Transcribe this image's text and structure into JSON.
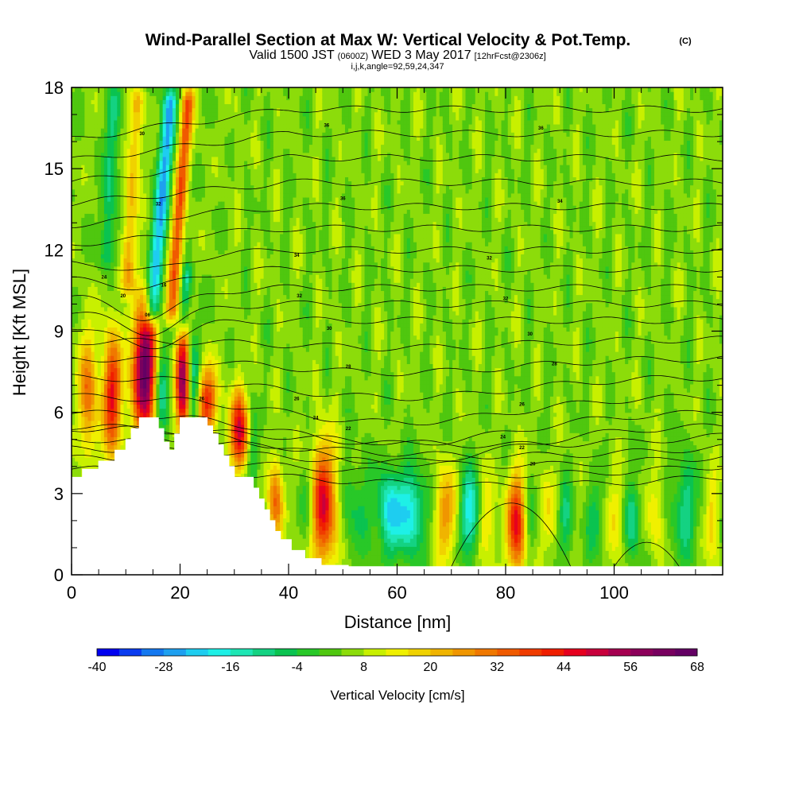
{
  "title": {
    "main": "Wind-Parallel Section at Max W: Vertical Velocity & Pot.Temp.",
    "copyright": "(C)",
    "valid_prefix": "Valid 1500 JST",
    "valid_utc": "(0600Z)",
    "valid_date": "WED 3 May 2017",
    "forecast": "[12hrFcst@2306z]",
    "params": "i,j,k,angle=92,59,24,347"
  },
  "colors": {
    "terrain": "#ffffff",
    "contour": "#000000",
    "plot_border": "#000000",
    "background_field": "#4fc70f"
  },
  "chart_data": {
    "type": "heatmap",
    "xlabel": "Distance [nm]",
    "ylabel": "Height [Kft MSL]",
    "xlim": [
      0,
      120
    ],
    "ylim": [
      0,
      18
    ],
    "x_ticks": [
      0,
      20,
      40,
      60,
      80,
      100
    ],
    "y_ticks": [
      0,
      3,
      6,
      9,
      12,
      15,
      18
    ],
    "colorbar": {
      "label": "Vertical Velocity [cm/s]",
      "min": -40,
      "max": 68,
      "step": 4,
      "tick_labels": [
        "-40",
        "-28",
        "-16",
        "-4",
        "8",
        "20",
        "32",
        "44",
        "56",
        "68"
      ],
      "colors": [
        "#0000f0",
        "#0a3cf0",
        "#1478f0",
        "#1ea0f0",
        "#1ecdf0",
        "#1ef0e6",
        "#1ee6b4",
        "#14d282",
        "#0ac350",
        "#28c828",
        "#4fc70f",
        "#8cdc0a",
        "#c8f000",
        "#f0f000",
        "#f0d200",
        "#f0b400",
        "#f09600",
        "#f07800",
        "#f05a00",
        "#f03c00",
        "#f01e00",
        "#e6001e",
        "#c8003c",
        "#a50050",
        "#8c005a",
        "#78005f",
        "#640064"
      ]
    },
    "terrain_profile": [
      [
        0,
        3.6
      ],
      [
        2,
        3.6
      ],
      [
        2,
        3.9
      ],
      [
        5,
        3.9
      ],
      [
        5,
        4.2
      ],
      [
        8,
        4.2
      ],
      [
        8,
        4.6
      ],
      [
        10,
        4.6
      ],
      [
        10,
        5.0
      ],
      [
        11,
        5.0
      ],
      [
        11,
        5.4
      ],
      [
        12.5,
        5.4
      ],
      [
        12.5,
        5.8
      ],
      [
        16,
        5.8
      ],
      [
        16,
        5.4
      ],
      [
        17,
        5.4
      ],
      [
        17,
        4.9
      ],
      [
        18,
        4.9
      ],
      [
        18,
        4.6
      ],
      [
        19,
        4.6
      ],
      [
        19,
        5.2
      ],
      [
        20,
        5.2
      ],
      [
        20,
        5.8
      ],
      [
        25,
        5.8
      ],
      [
        25,
        5.5
      ],
      [
        26,
        5.5
      ],
      [
        26,
        5.2
      ],
      [
        27,
        5.2
      ],
      [
        27,
        4.8
      ],
      [
        28,
        4.8
      ],
      [
        28,
        4.4
      ],
      [
        29,
        4.4
      ],
      [
        29,
        4.0
      ],
      [
        30,
        4.0
      ],
      [
        30,
        3.6
      ],
      [
        33.5,
        3.6
      ],
      [
        33.5,
        3.2
      ],
      [
        34.5,
        3.2
      ],
      [
        34.5,
        2.8
      ],
      [
        35.5,
        2.8
      ],
      [
        35.5,
        2.4
      ],
      [
        36.5,
        2.4
      ],
      [
        36.5,
        2.0
      ],
      [
        37.5,
        2.0
      ],
      [
        37.5,
        1.6
      ],
      [
        38.5,
        1.6
      ],
      [
        38.5,
        1.3
      ],
      [
        40.5,
        1.3
      ],
      [
        40.5,
        0.9
      ],
      [
        43,
        0.9
      ],
      [
        43,
        0.6
      ],
      [
        46,
        0.6
      ],
      [
        46,
        0.35
      ],
      [
        51,
        0.35
      ],
      [
        51,
        0.3
      ],
      [
        120,
        0.3
      ]
    ],
    "vertical_velocity_features": [
      {
        "x": 3,
        "z": 6.7,
        "sx": 1.2,
        "sz": 1.6,
        "w": 26
      },
      {
        "x": 7.5,
        "z": 6.6,
        "sx": 1.2,
        "sz": 1.6,
        "w": 40
      },
      {
        "x": 13.5,
        "z": 7.6,
        "sx": 1.6,
        "sz": 1.7,
        "w": 62
      },
      {
        "x": 16.5,
        "z": 6.9,
        "sx": 1.0,
        "sz": 1.5,
        "w": -20
      },
      {
        "x": 20.5,
        "z": 7.2,
        "sx": 0.9,
        "sz": 1.5,
        "w": 52
      },
      {
        "x": 22.5,
        "z": 7.0,
        "sx": 0.8,
        "sz": 1.5,
        "w": -18
      },
      {
        "x": 25,
        "z": 6.4,
        "sx": 1.3,
        "sz": 0.9,
        "w": 36
      },
      {
        "x": 31,
        "z": 5.3,
        "sx": 1.3,
        "sz": 1.0,
        "w": 42
      },
      {
        "x": 33.5,
        "z": 4.6,
        "sx": 0.8,
        "sz": 1.0,
        "w": -16
      },
      {
        "x": 37.5,
        "z": 2.7,
        "sx": 1.0,
        "sz": 1.1,
        "w": 26
      },
      {
        "x": 46.5,
        "z": 2.6,
        "sx": 1.6,
        "sz": 1.6,
        "w": 42
      },
      {
        "x": 43.5,
        "z": 2.7,
        "sx": 1.0,
        "sz": 1.0,
        "w": -8
      },
      {
        "x": 52.5,
        "z": 2.5,
        "sx": 1.8,
        "sz": 1.2,
        "w": -10
      },
      {
        "x": 59,
        "z": 2.3,
        "sx": 1.9,
        "sz": 1.1,
        "w": -26
      },
      {
        "x": 63,
        "z": 2.3,
        "sx": 1.5,
        "sz": 1.1,
        "w": -22
      },
      {
        "x": 69,
        "z": 2.3,
        "sx": 1.3,
        "sz": 1.2,
        "w": 22
      },
      {
        "x": 73.5,
        "z": 2.3,
        "sx": 1.3,
        "sz": 1.1,
        "w": -24
      },
      {
        "x": 76.5,
        "z": 2.0,
        "sx": 1.0,
        "sz": 1.2,
        "w": 14
      },
      {
        "x": 82,
        "z": 1.9,
        "sx": 1.3,
        "sz": 1.3,
        "w": 38
      },
      {
        "x": 84.5,
        "z": 2.1,
        "sx": 0.9,
        "sz": 1.1,
        "w": -8
      },
      {
        "x": 88,
        "z": 2.2,
        "sx": 1.2,
        "sz": 1.2,
        "w": 10
      },
      {
        "x": 91,
        "z": 2.0,
        "sx": 1.0,
        "sz": 1.0,
        "w": -14
      },
      {
        "x": 96.5,
        "z": 2.0,
        "sx": 1.1,
        "sz": 1.0,
        "w": -12
      },
      {
        "x": 100,
        "z": 2.1,
        "sx": 1.2,
        "sz": 1.1,
        "w": 10
      },
      {
        "x": 103.5,
        "z": 2.0,
        "sx": 1.0,
        "sz": 1.0,
        "w": -16
      },
      {
        "x": 107.5,
        "z": 2.3,
        "sx": 1.2,
        "sz": 1.1,
        "w": 10
      },
      {
        "x": 113,
        "z": 2.5,
        "sx": 1.6,
        "sz": 1.3,
        "w": -16
      },
      {
        "x": 118,
        "z": 2.0,
        "sx": 0.8,
        "sz": 1.2,
        "w": 14
      }
    ],
    "theta_contour_labels": [
      {
        "x": 13,
        "z": 16.3,
        "text": "30"
      },
      {
        "x": 16,
        "z": 13.7,
        "text": "32"
      },
      {
        "x": 6,
        "z": 11.0,
        "text": "24"
      },
      {
        "x": 9.5,
        "z": 10.3,
        "text": "20"
      },
      {
        "x": 17,
        "z": 10.7,
        "text": "16"
      },
      {
        "x": 14,
        "z": 9.6,
        "text": "06"
      },
      {
        "x": 47,
        "z": 16.6,
        "text": "36"
      },
      {
        "x": 86.5,
        "z": 16.5,
        "text": "36"
      },
      {
        "x": 50,
        "z": 13.9,
        "text": "36"
      },
      {
        "x": 90,
        "z": 13.8,
        "text": "34"
      },
      {
        "x": 41.5,
        "z": 11.8,
        "text": "34"
      },
      {
        "x": 77,
        "z": 11.7,
        "text": "32"
      },
      {
        "x": 42,
        "z": 10.3,
        "text": "32"
      },
      {
        "x": 80,
        "z": 10.2,
        "text": "32"
      },
      {
        "x": 47.5,
        "z": 9.1,
        "text": "30"
      },
      {
        "x": 84.5,
        "z": 8.9,
        "text": "30"
      },
      {
        "x": 51,
        "z": 7.7,
        "text": "28"
      },
      {
        "x": 89,
        "z": 7.8,
        "text": "28"
      },
      {
        "x": 41.5,
        "z": 6.5,
        "text": "26"
      },
      {
        "x": 83,
        "z": 6.3,
        "text": "26"
      },
      {
        "x": 45,
        "z": 5.8,
        "text": "24"
      },
      {
        "x": 79.5,
        "z": 5.1,
        "text": "24"
      },
      {
        "x": 51,
        "z": 5.4,
        "text": "22"
      },
      {
        "x": 83,
        "z": 4.7,
        "text": "22"
      },
      {
        "x": 85,
        "z": 4.1,
        "text": "20"
      },
      {
        "x": 24,
        "z": 6.5,
        "text": "26"
      }
    ]
  }
}
